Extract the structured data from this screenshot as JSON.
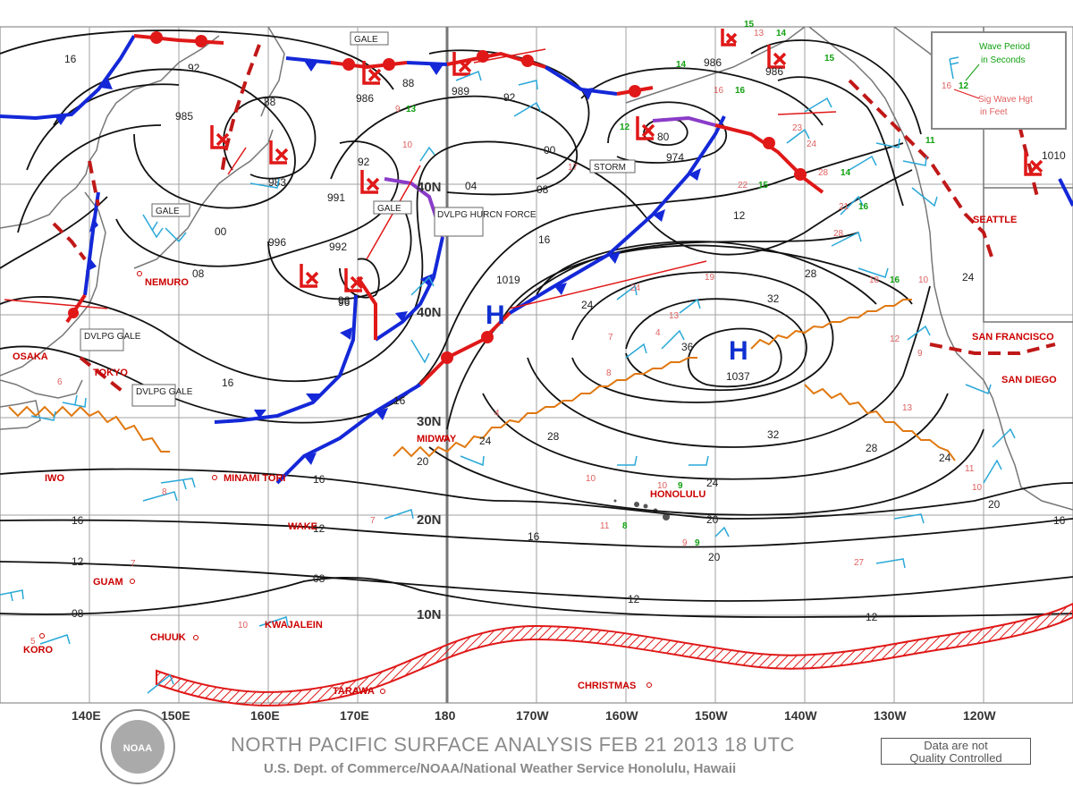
{
  "title": "NORTH PACIFIC SURFACE ANALYSIS FEB 21 2013 18 UTC",
  "subtitle": "U.S. Dept. of Commerce/NOAA/National Weather Service Honolulu, Hawaii",
  "quality_note_line1": "Data are not",
  "quality_note_line2": "Quality Controlled",
  "logo_text": "NOAA",
  "legend": {
    "wave_period": "Wave Period",
    "wave_period2": "in Seconds",
    "sig_wave": "Sig Wave Hgt",
    "sig_wave2": "in Feet",
    "sample_red": "16",
    "sample_green": "12"
  },
  "longitude_labels": [
    "140E",
    "150E",
    "160E",
    "170E",
    "180",
    "170W",
    "160W",
    "150W",
    "140W",
    "130W",
    "120W"
  ],
  "latitude_labels": [
    "40N",
    "40N",
    "30N",
    "20N",
    "10N"
  ],
  "cities": [
    "NEMURO",
    "OSAKA",
    "TOKYO",
    "IWO",
    "MINAMI TORI",
    "WAKE",
    "GUAM",
    "CHUUK",
    "KORO",
    "KWAJALEIN",
    "TARAWA",
    "MIDWAY",
    "HONOLULU",
    "CHRISTMAS",
    "SEATTLE",
    "SAN FRANCISCO",
    "SAN DIEGO"
  ],
  "warnings": [
    "GALE",
    "GALE",
    "GALE",
    "DVLPG GALE",
    "DVLPG GALE",
    "DVLPG HURCN FORCE",
    "STORM"
  ],
  "highs": [
    {
      "symbol": "H",
      "pressure": "1019"
    },
    {
      "symbol": "H",
      "pressure": "1037"
    }
  ],
  "lows": [
    {
      "pressure": "985"
    },
    {
      "pressure": "983"
    },
    {
      "pressure": "986"
    },
    {
      "pressure": "989"
    },
    {
      "pressure": "991"
    },
    {
      "pressure": "992"
    },
    {
      "pressure": "996"
    },
    {
      "pressure": "974"
    },
    {
      "pressure": "986"
    },
    {
      "pressure": "986"
    },
    {
      "pressure": "1010"
    }
  ],
  "isobar_labels": [
    "16",
    "92",
    "88",
    "00",
    "08",
    "16",
    "96",
    "92",
    "88",
    "92",
    "80",
    "00",
    "04",
    "08",
    "12",
    "16",
    "24",
    "28",
    "32",
    "36",
    "32",
    "28",
    "24",
    "20",
    "16",
    "12",
    "08",
    "12",
    "16",
    "20",
    "24",
    "24",
    "28",
    "20",
    "16",
    "12",
    "08",
    "12",
    "24",
    "16",
    "16",
    "20",
    "96"
  ],
  "obs_red": [
    "9",
    "10",
    "13",
    "17",
    "22",
    "23",
    "24",
    "28",
    "21",
    "28",
    "18",
    "10",
    "24",
    "13",
    "7",
    "4",
    "8",
    "19",
    "12",
    "9",
    "13",
    "11",
    "10",
    "10",
    "10",
    "11",
    "9",
    "27",
    "7",
    "8",
    "4",
    "10",
    "5",
    "16",
    "7",
    "6"
  ],
  "obs_green": [
    "13",
    "15",
    "14",
    "16",
    "15",
    "16",
    "14",
    "12",
    "16",
    "8",
    "9",
    "9",
    "11",
    "15",
    "14"
  ],
  "colors": {
    "isobar": "#111111",
    "cold_front": "#1428d8",
    "warm_front": "#e01818",
    "occluded_front": "#8a3cc8",
    "trough": "#c01818",
    "itcz": "#e07810",
    "wind_barb": "#2aa8d8",
    "coast": "#666666",
    "grid": "#999999"
  }
}
